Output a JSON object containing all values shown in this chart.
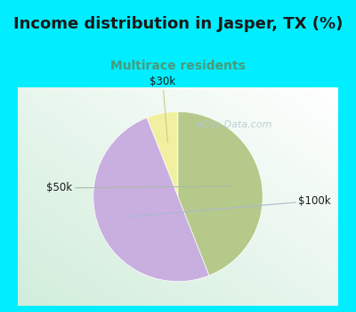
{
  "title": "Income distribution in Jasper, TX (%)",
  "subtitle": "Multirace residents",
  "slices": [
    {
      "label": "$30k",
      "value": 6,
      "color": "#f0f0a0"
    },
    {
      "label": "$100k",
      "value": 50,
      "color": "#c9aee0"
    },
    {
      "label": "$50k",
      "value": 44,
      "color": "#b5c98a"
    }
  ],
  "background_cyan": "#00eeff",
  "title_color": "#1a1a1a",
  "subtitle_color": "#4a9a7a",
  "label_color": "#1a1a1a",
  "watermark": "City-Data.com",
  "watermark_color": "#b0c8c8",
  "startangle": 90,
  "pie_box_color": "#ffffff",
  "pie_area_bg_corner": "#c8e8d8",
  "title_fontsize": 13,
  "subtitle_fontsize": 10,
  "label_fontsize": 8.5
}
